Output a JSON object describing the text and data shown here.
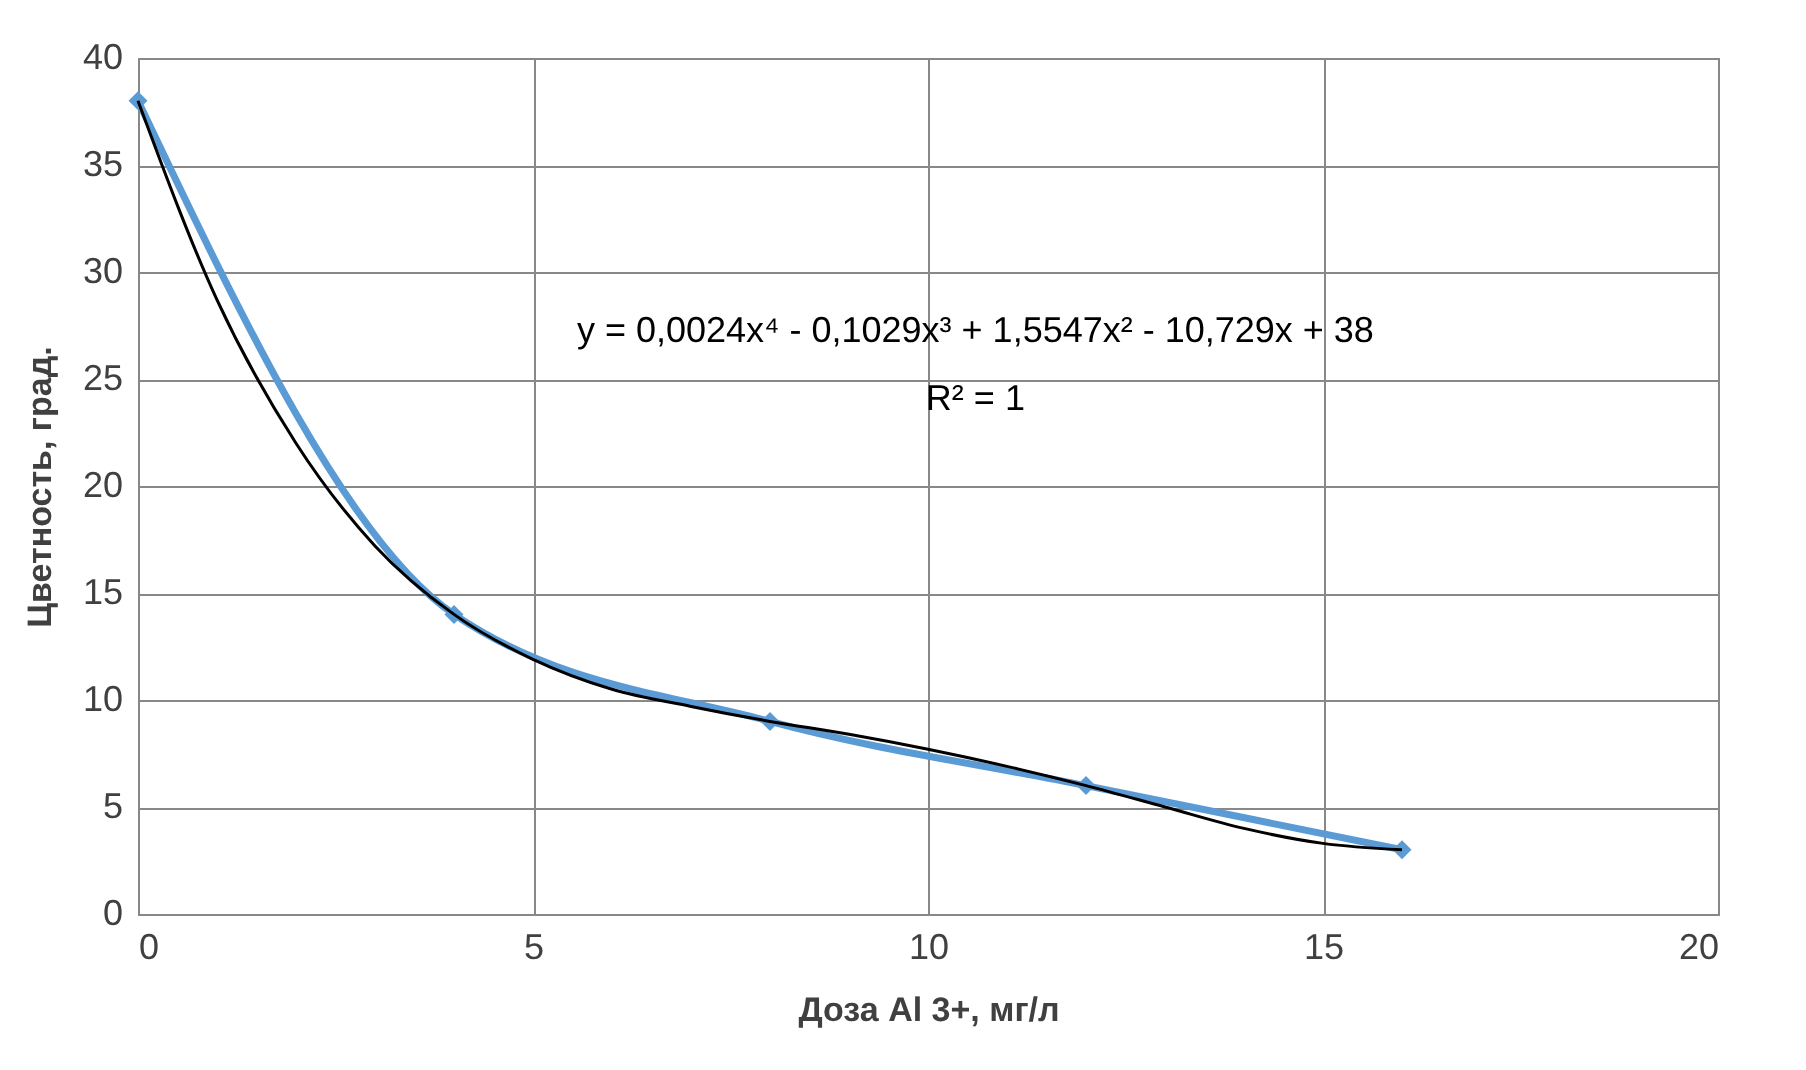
{
  "chart_data": {
    "type": "line",
    "xlabel": "Доза  Al 3+, мг/л",
    "ylabel": "Цветность, град.",
    "xlim": [
      0,
      20
    ],
    "xticks": [
      0,
      5,
      10,
      15,
      20
    ],
    "ylim": [
      0,
      40
    ],
    "yticks": [
      0,
      5,
      10,
      15,
      20,
      25,
      30,
      35,
      40
    ],
    "grid": true,
    "series": [
      {
        "color": "#5b9bd5",
        "marker": "diamond",
        "x": [
          0,
          4,
          8,
          12,
          16
        ],
        "values": [
          38,
          14,
          9,
          6,
          3
        ]
      },
      {
        "type": "line",
        "color": "#000000",
        "marker": "none",
        "x": [
          0,
          1,
          2,
          3,
          4,
          5,
          6,
          7,
          8,
          9,
          10,
          11,
          12,
          13,
          14,
          15,
          16
        ],
        "values": [
          38,
          28.7,
          22.0,
          17.2,
          14,
          11.9,
          10.5,
          9.7,
          9,
          8.4,
          7.7,
          6.9,
          6,
          5.0,
          4.0,
          3.3,
          3
        ]
      }
    ],
    "annotations": [
      "y = 0,0024x⁴ - 0,1029x³ + 1,5547x² - 10,729x + 38",
      "R² = 1"
    ]
  }
}
